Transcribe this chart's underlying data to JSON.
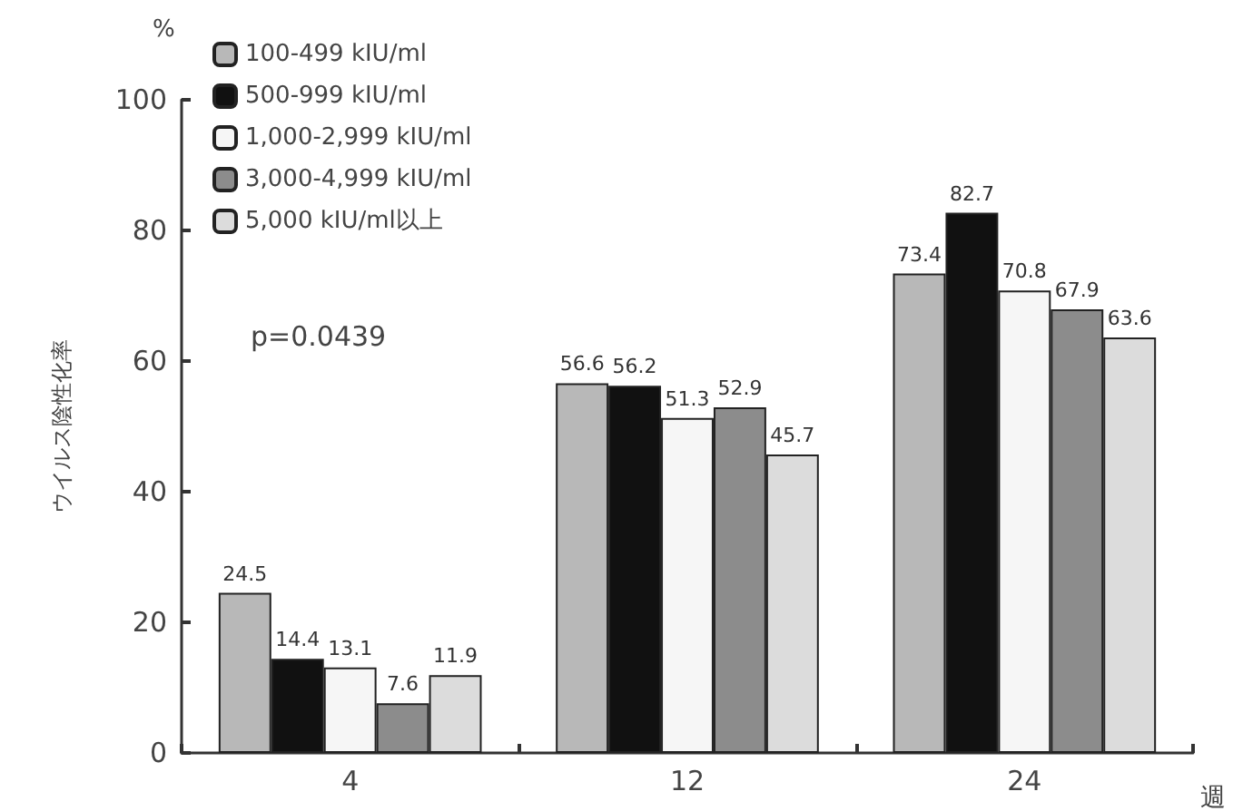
{
  "chart_data": {
    "type": "bar",
    "xlabel": "週",
    "ylabel": "ウイルス陰性化率",
    "categories": [
      "4",
      "12",
      "24"
    ],
    "series": [
      {
        "name": "100-499 kIU/ml",
        "color": "#b8b8b8",
        "values": [
          24.5,
          56.6,
          73.4
        ]
      },
      {
        "name": "500-999 kIU/ml",
        "color": "#111111",
        "values": [
          14.4,
          56.2,
          82.7
        ]
      },
      {
        "name": "1,000-2,999 kIU/ml",
        "color": "#f6f6f6",
        "values": [
          13.1,
          51.3,
          70.8
        ]
      },
      {
        "name": "3,000-4,999 kIU/ml",
        "color": "#8c8c8c",
        "values": [
          7.6,
          52.9,
          67.9
        ]
      },
      {
        "name": "5,000 kIU/ml以上",
        "color": "#dcdcdc",
        "values": [
          11.9,
          45.7,
          63.6
        ]
      }
    ],
    "ylim": [
      0,
      100
    ],
    "yticks": [
      0,
      20,
      40,
      60,
      80,
      100
    ],
    "grid": false,
    "legend": "top left",
    "data_labels": true,
    "annotations": [
      "%",
      "p=0.0439"
    ]
  }
}
